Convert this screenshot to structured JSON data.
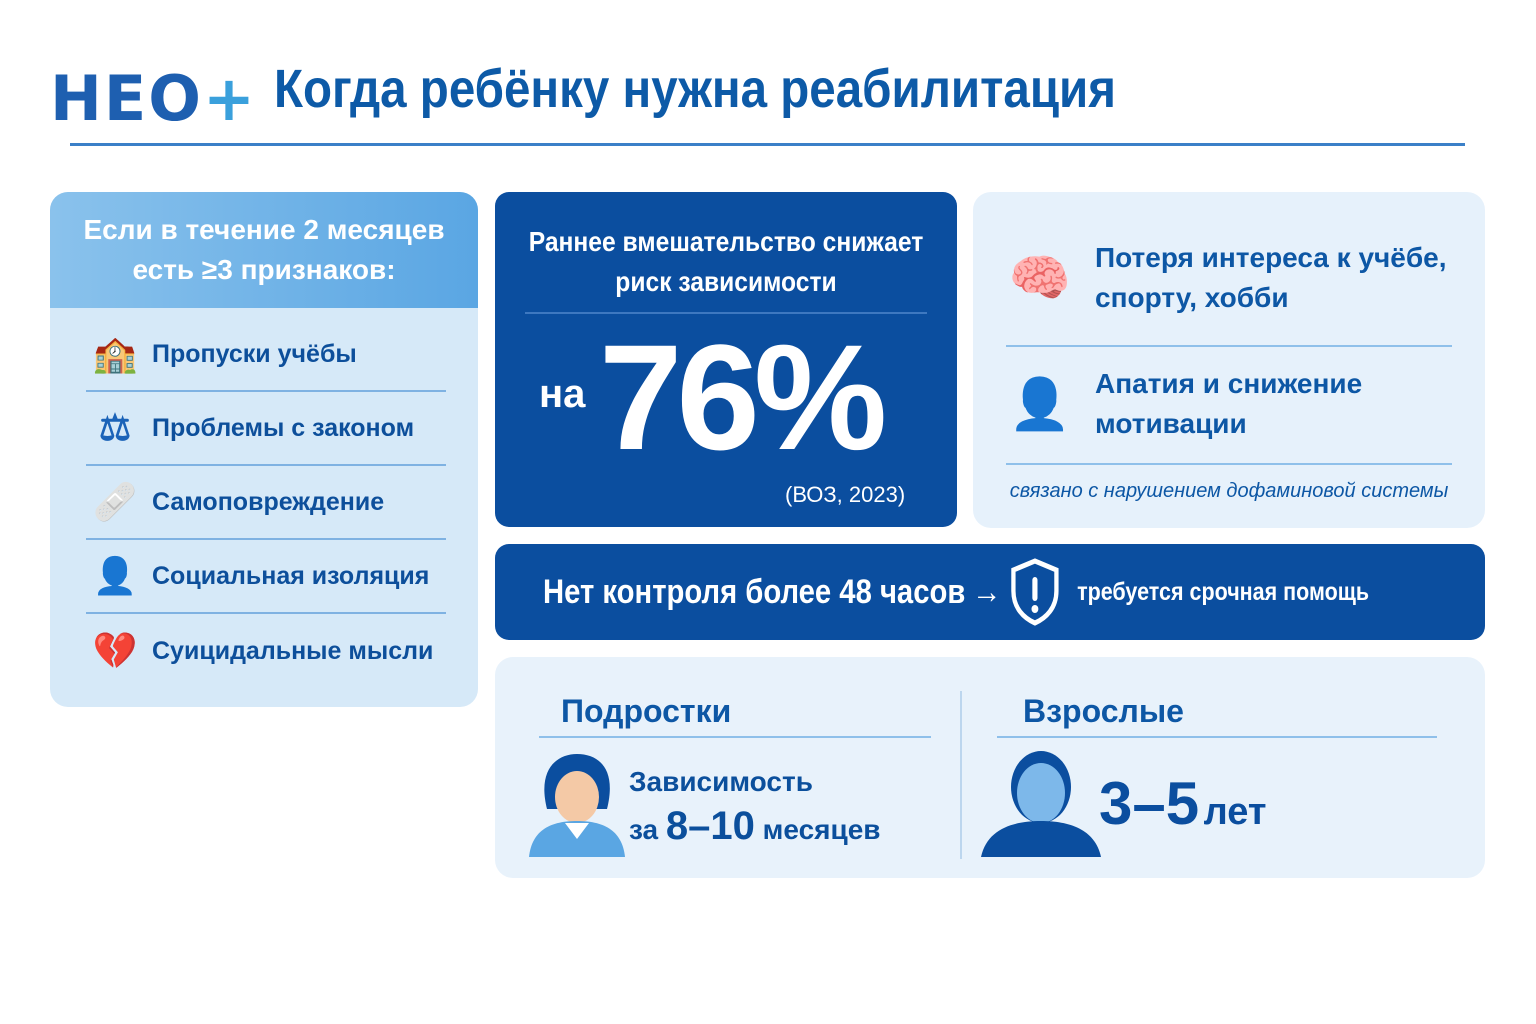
{
  "header": {
    "logo_text": "НЕО",
    "logo_plus": "+",
    "title": "Когда ребёнку нужна реабилитация"
  },
  "signs": {
    "heading": "Если в течение 2 месяцев есть ≥3 признаков:",
    "items": [
      {
        "icon": "school-icon",
        "label": "Пропуски учёбы"
      },
      {
        "icon": "gavel-icon",
        "label": "Проблемы с законом"
      },
      {
        "icon": "bandage-icon",
        "label": "Самоповреждение"
      },
      {
        "icon": "person-icon",
        "label": "Социальная изоляция"
      },
      {
        "icon": "broken-heart-icon",
        "label": "Суицидальные мысли"
      }
    ]
  },
  "stat": {
    "heading": "Раннее вмешательство снижает риск зависимости",
    "prefix": "на",
    "value": "76%",
    "source": "(ВОЗ, 2023)"
  },
  "symptoms": {
    "items": [
      {
        "icon": "brain-icon",
        "label": "Потеря интереса к учёбе, спорту, хобби"
      },
      {
        "icon": "sad-person-icon",
        "label": "Апатия и снижение мотивации"
      }
    ],
    "note": "связано с нарушением дофаминовой системы"
  },
  "banner": {
    "text": "Нет контроля более 48 часов",
    "arrow": "→",
    "icon": "shield-alert-icon",
    "action": "требуется срочная помощь"
  },
  "comparison": {
    "teens": {
      "title": "Подростки",
      "line1": "Зависимость",
      "prefix": "за",
      "value": "8–10",
      "unit": "месяцев"
    },
    "adults": {
      "title": "Взрослые",
      "value": "3–5",
      "unit": "лет"
    }
  },
  "colors": {
    "primary": "#0b4e9f",
    "light": "#e6f1fb",
    "accent": "#5aa6e3"
  }
}
